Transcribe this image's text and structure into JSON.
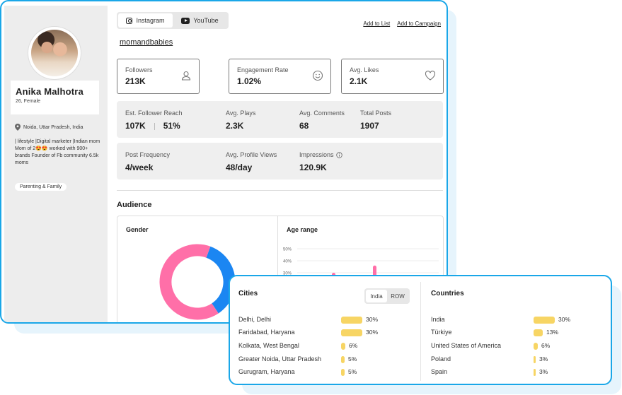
{
  "profile": {
    "name": "Anika Malhotra",
    "age_gender": "26, Female",
    "location": "Noida, Uttar Pradesh, India",
    "bio": "| lifestyle |Digital marketer |Indian mom Mom of 2😍😍 worked with 900+ brands Founder of Fb community 6.5k moms",
    "tag": "Parenting & Family"
  },
  "tabs": [
    {
      "label": "Instagram",
      "icon": "instagram-icon",
      "active": true
    },
    {
      "label": "YouTube",
      "icon": "youtube-icon",
      "active": false
    }
  ],
  "actions": {
    "add_to_list": "Add to List",
    "add_to_campaign": "Add to Campaign"
  },
  "handle": "momandbabies",
  "metrics": [
    {
      "label": "Followers",
      "value": "213K",
      "icon": "user-icon"
    },
    {
      "label": "Engagement Rate",
      "value": "1.02%",
      "icon": "smile-icon"
    },
    {
      "label": "Avg. Likes",
      "value": "2.1K",
      "icon": "heart-icon"
    }
  ],
  "stats_row1": {
    "reach_label": "Est. Follower Reach",
    "reach_value": "107K",
    "reach_percent": "51%",
    "plays_label": "Avg. Plays",
    "plays_value": "2.3K",
    "comments_label": "Avg. Comments",
    "comments_value": "68",
    "posts_label": "Total Posts",
    "posts_value": "1907"
  },
  "stats_row2": {
    "frequency_label": "Post Frequency",
    "frequency_value": "4/week",
    "views_label": "Avg. Profile Views",
    "views_value": "48/day",
    "impressions_label": "Impressions",
    "impressions_value": "120.9K"
  },
  "audience": {
    "title": "Audience",
    "gender_title": "Gender",
    "age_title": "Age range"
  },
  "chart_data": [
    {
      "type": "pie",
      "title": "Gender",
      "values": [
        0.35,
        0.65
      ],
      "colors": [
        "#1b86f2",
        "#ff6fa8"
      ]
    },
    {
      "type": "bar",
      "title": "Age range",
      "ytick_labels": [
        "50%",
        "40%",
        "30%"
      ],
      "ylim": [
        0,
        50
      ],
      "values": [
        30,
        36
      ],
      "color": "#ff6fa8"
    }
  ],
  "cities": {
    "title": "Cities",
    "toggle": [
      "India",
      "ROW"
    ],
    "items": [
      {
        "name": "Delhi, Delhi",
        "percent": "30%",
        "value": 30
      },
      {
        "name": "Faridabad, Haryana",
        "percent": "30%",
        "value": 30
      },
      {
        "name": "Kolkata, West Bengal",
        "percent": "6%",
        "value": 6
      },
      {
        "name": "Greater Noida, Uttar Pradesh",
        "percent": "5%",
        "value": 5
      },
      {
        "name": "Gurugram, Haryana",
        "percent": "5%",
        "value": 5
      }
    ]
  },
  "countries": {
    "title": "Countries",
    "items": [
      {
        "name": "India",
        "percent": "30%",
        "value": 30
      },
      {
        "name": "Türkiye",
        "percent": "13%",
        "value": 13
      },
      {
        "name": "United States of America",
        "percent": "6%",
        "value": 6
      },
      {
        "name": "Poland",
        "percent": "3%",
        "value": 3
      },
      {
        "name": "Spain",
        "percent": "3%",
        "value": 3
      }
    ]
  },
  "colors": {
    "accent": "#1aa7e8",
    "bar": "#f7d564",
    "male": "#1b86f2",
    "female": "#ff6fa8"
  }
}
